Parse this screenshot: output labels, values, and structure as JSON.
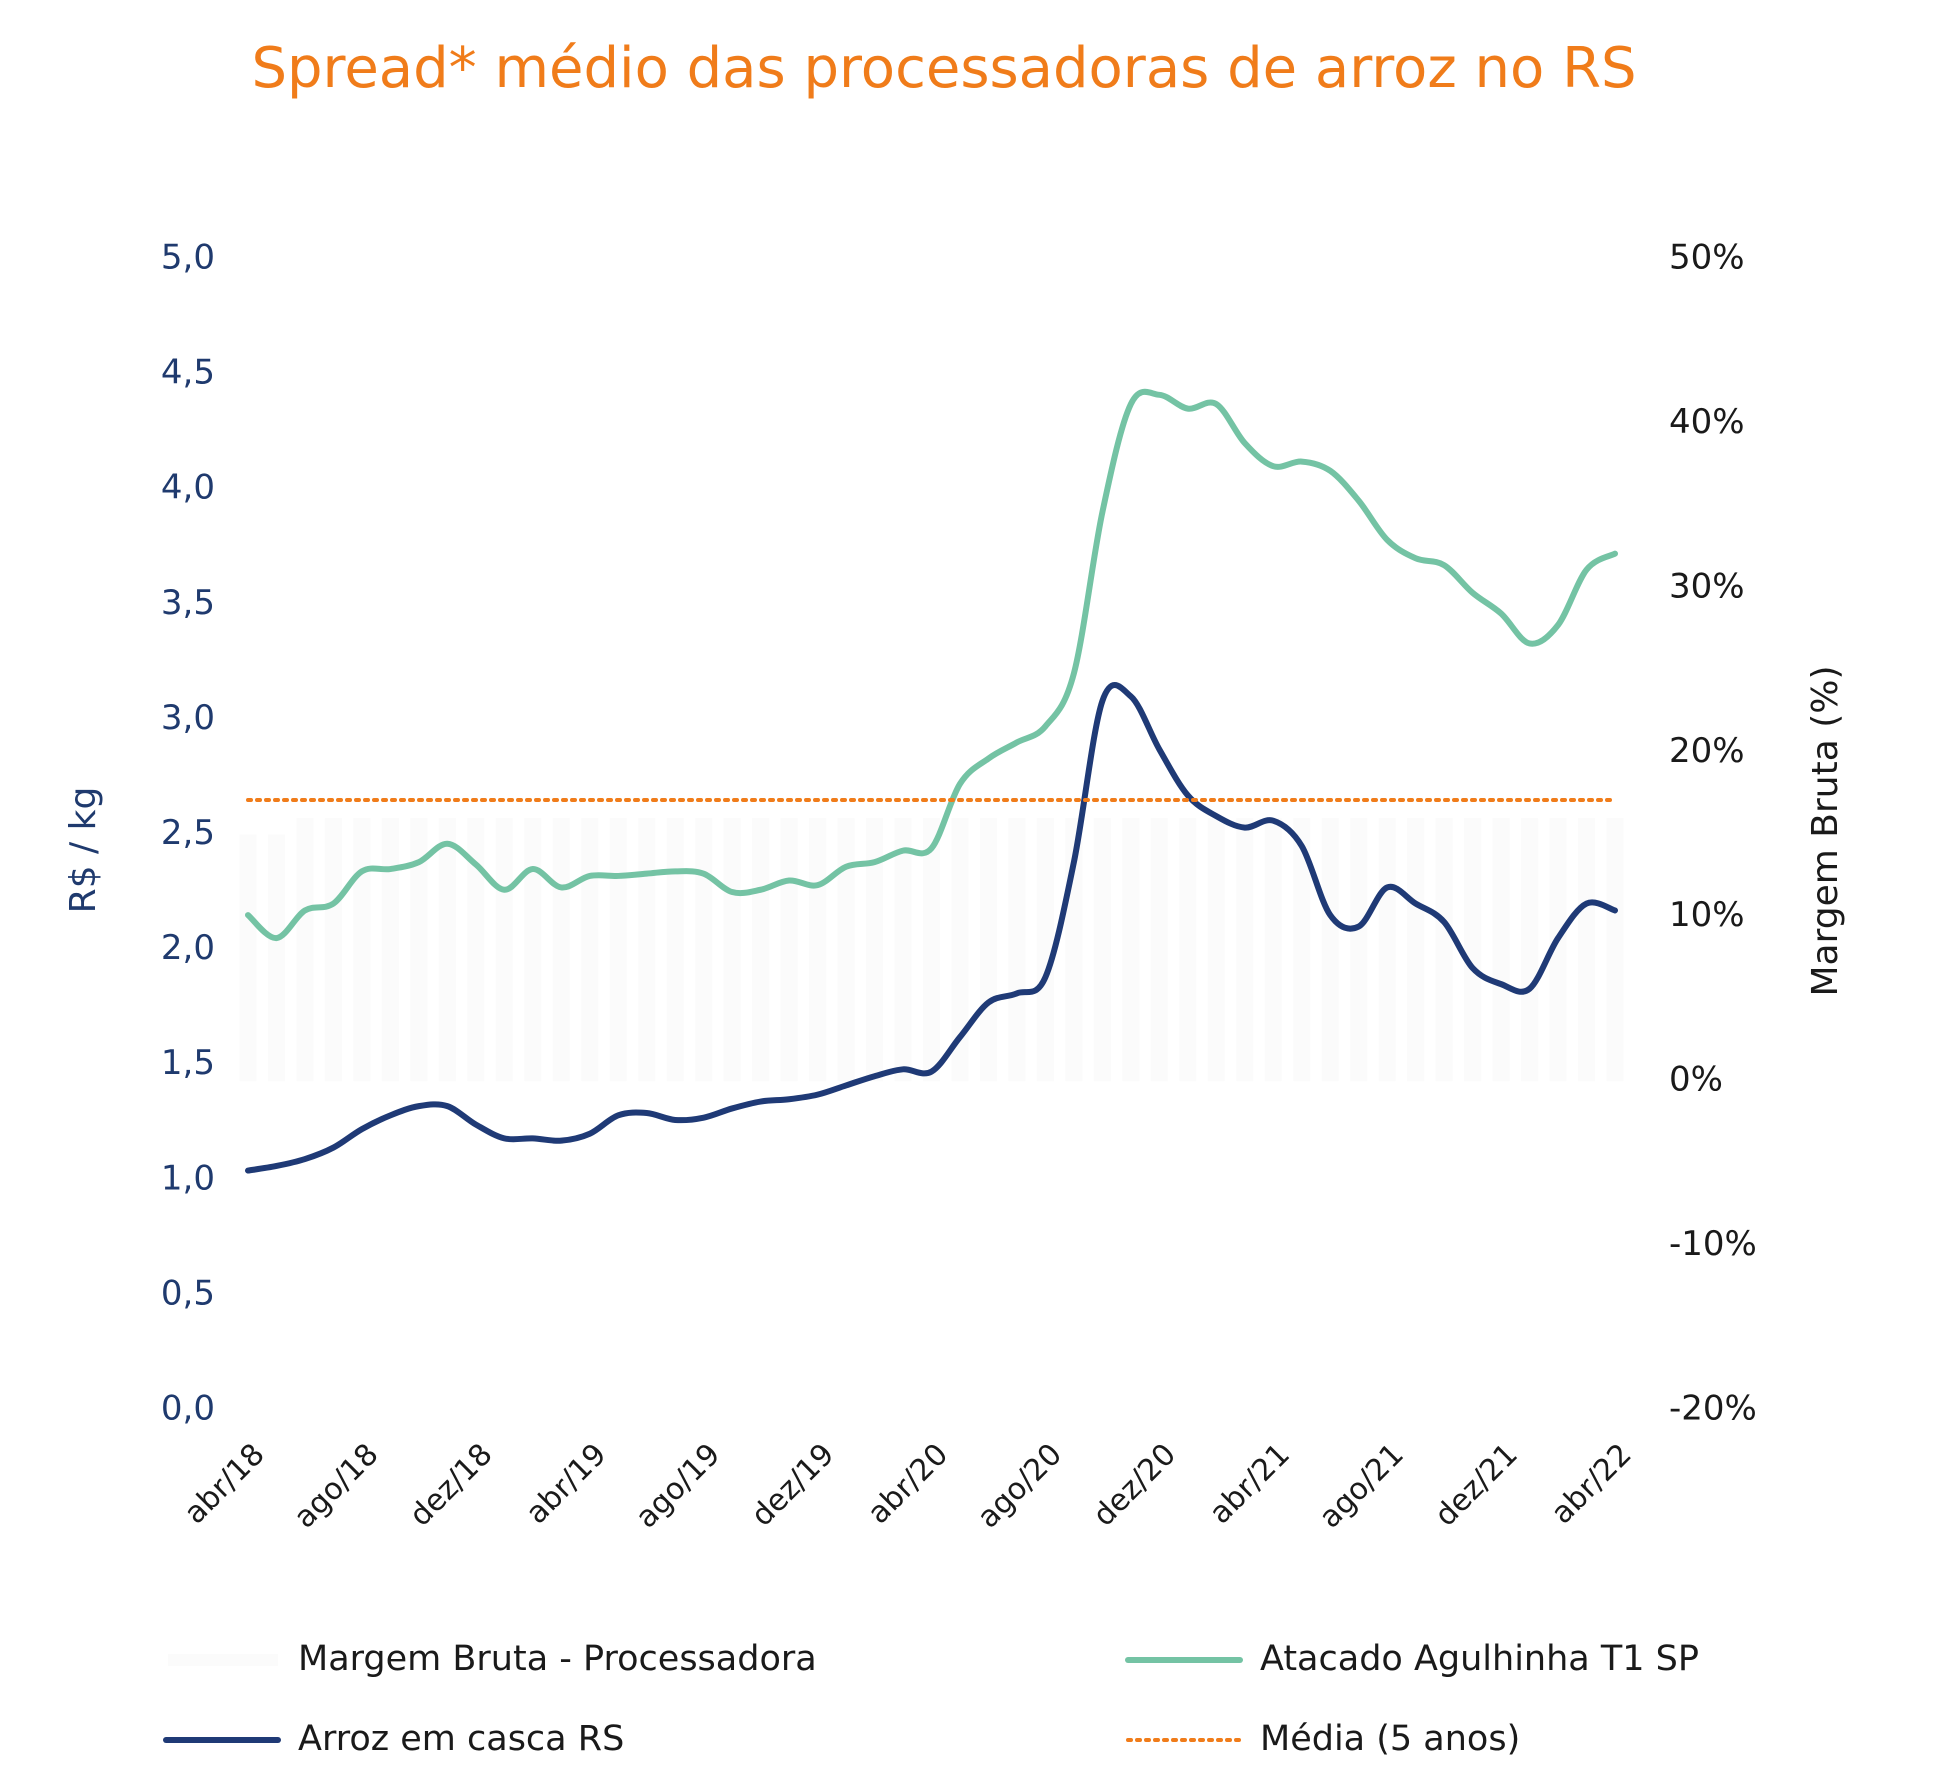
{
  "chart_data": {
    "type": "line",
    "title": "Spread* médio das processadoras de arroz no RS",
    "y_label": "R$ / kg",
    "y2_label": "Margem Bruta (%)",
    "categories": [
      "abr/18",
      null,
      null,
      null,
      "ago/18",
      null,
      null,
      null,
      "dez/18",
      null,
      null,
      null,
      "abr/19",
      null,
      null,
      null,
      "ago/19",
      null,
      null,
      null,
      "dez/19",
      null,
      null,
      null,
      "abr/20",
      null,
      null,
      null,
      "ago/20",
      null,
      null,
      null,
      "dez/20",
      null,
      null,
      null,
      "abr/21",
      null,
      null,
      null,
      "ago/21",
      null,
      null,
      null,
      "dez/21",
      null,
      null,
      null,
      "abr/22"
    ],
    "ylim": [
      0,
      5
    ],
    "yticks": [
      {
        "value": 0,
        "label": "0,0"
      },
      {
        "value": 0.5,
        "label": "0,5"
      },
      {
        "value": 1,
        "label": "1,0"
      },
      {
        "value": 1.5,
        "label": "1,5"
      },
      {
        "value": 2,
        "label": "2,0"
      },
      {
        "value": 2.5,
        "label": "2,5"
      },
      {
        "value": 3,
        "label": "3,0"
      },
      {
        "value": 3.5,
        "label": "3,5"
      },
      {
        "value": 4,
        "label": "4,0"
      },
      {
        "value": 4.5,
        "label": "4,5"
      },
      {
        "value": 5,
        "label": "5,0"
      }
    ],
    "y2lim": [
      -20,
      50
    ],
    "y2ticks": [
      {
        "value": -20,
        "label": "-20%"
      },
      {
        "value": -10,
        "label": "-10%"
      },
      {
        "value": 0,
        "label": "0%"
      },
      {
        "value": 10,
        "label": "10%"
      },
      {
        "value": 20,
        "label": "20%"
      },
      {
        "value": 30,
        "label": "30%"
      },
      {
        "value": 40,
        "label": "40%"
      },
      {
        "value": 50,
        "label": "50%"
      }
    ],
    "series": [
      {
        "name": "Margem Bruta - Processadora",
        "type": "bar",
        "axis": "y2",
        "color": "#fbfbfb",
        "values": [
          15,
          15,
          16,
          16,
          16,
          16,
          16,
          16,
          16,
          16,
          16,
          16,
          16,
          16,
          16,
          16,
          16,
          16,
          16,
          16,
          16,
          16,
          16,
          16,
          16,
          16,
          16,
          16,
          16,
          16,
          16,
          16,
          16,
          16,
          16,
          16,
          16,
          16,
          16,
          16,
          16,
          16,
          16,
          16,
          16,
          16,
          16,
          16,
          16
        ]
      },
      {
        "name": "Atacado Agulhinha T1 SP",
        "color": "#74c3a4",
        "values": [
          2.15,
          2.05,
          2.17,
          2.2,
          2.34,
          2.35,
          2.38,
          2.46,
          2.37,
          2.26,
          2.35,
          2.27,
          2.32,
          2.32,
          2.33,
          2.34,
          2.33,
          2.25,
          2.26,
          2.3,
          2.28,
          2.36,
          2.38,
          2.43,
          2.44,
          2.72,
          2.83,
          2.9,
          2.97,
          3.2,
          3.9,
          4.37,
          4.41,
          4.35,
          4.37,
          4.2,
          4.1,
          4.12,
          4.08,
          3.95,
          3.78,
          3.7,
          3.67,
          3.55,
          3.46,
          3.33,
          3.41,
          3.65,
          3.72
        ]
      },
      {
        "name": "Arroz em casca RS",
        "color": "#1f3a76",
        "values": [
          1.04,
          1.06,
          1.09,
          1.14,
          1.22,
          1.28,
          1.32,
          1.32,
          1.24,
          1.18,
          1.18,
          1.17,
          1.2,
          1.28,
          1.29,
          1.26,
          1.27,
          1.31,
          1.34,
          1.35,
          1.37,
          1.41,
          1.45,
          1.48,
          1.47,
          1.62,
          1.77,
          1.81,
          1.88,
          2.38,
          3.08,
          3.1,
          2.87,
          2.67,
          2.58,
          2.53,
          2.56,
          2.45,
          2.15,
          2.1,
          2.27,
          2.2,
          2.12,
          1.92,
          1.85,
          1.83,
          2.05,
          2.2,
          2.17
        ]
      },
      {
        "name": "Média (5 anos)",
        "type": "hline",
        "color": "#f07c1a",
        "value": 2.65
      }
    ]
  }
}
